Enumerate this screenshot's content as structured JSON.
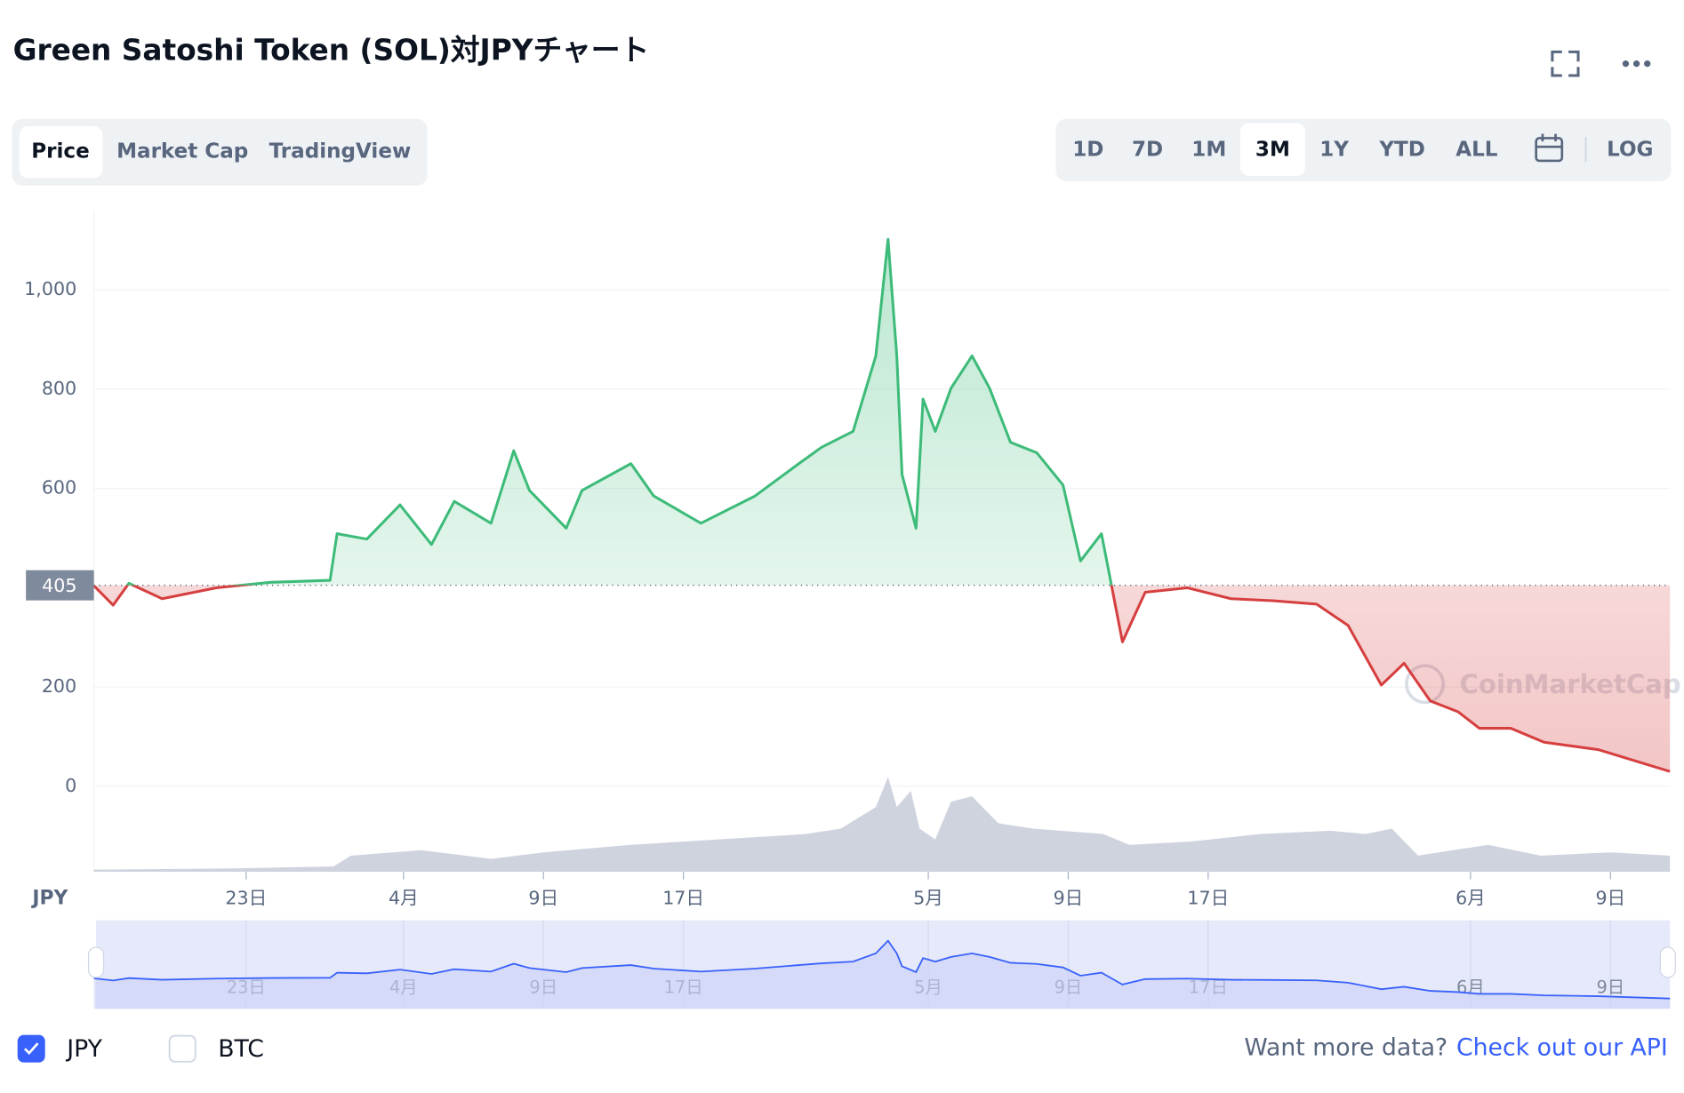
{
  "header": {
    "title": "Green Satoshi Token (SOL)対JPYチャート"
  },
  "tabs": [
    "Price",
    "Market Cap",
    "TradingView"
  ],
  "active_tab": 0,
  "ranges": [
    "1D",
    "7D",
    "1M",
    "3M",
    "1Y",
    "YTD",
    "ALL"
  ],
  "active_range": 3,
  "log_button": "LOG",
  "chart_data": {
    "type": "line",
    "currency_label": "JPY",
    "watermark": "CoinMarketCap",
    "reference_value": 405,
    "up_color": "#3dbb79",
    "down_color": "#d63f3f",
    "x": [
      -0.7,
      0.4,
      1.3,
      3.2,
      6.3,
      9.4,
      12.8,
      13.2,
      14.9,
      16.8,
      18.6,
      19.9,
      22,
      23.3,
      24.2,
      26.3,
      27.2,
      30,
      31.3,
      34,
      37.1,
      39.6,
      40.9,
      42.7,
      44,
      44.7,
      45.2,
      45.5,
      46.3,
      46.7,
      47.4,
      48.3,
      49.5,
      50.5,
      51.7,
      53.2,
      54.7,
      55.7,
      56.9,
      57.5,
      58.1,
      59.4,
      61.8,
      64.3,
      66.7,
      69.2,
      71,
      72.9,
      74.2,
      75.7,
      77.3,
      78.5,
      80.3,
      82.2,
      85.3,
      89.4
    ],
    "values": [
      404,
      365,
      409,
      378,
      400,
      411,
      415,
      509,
      498,
      567,
      487,
      574,
      530,
      676,
      596,
      520,
      596,
      650,
      585,
      530,
      585,
      650,
      683,
      715,
      867,
      1102,
      867,
      628,
      520,
      780,
      715,
      802,
      867,
      802,
      693,
      672,
      607,
      454,
      509,
      400,
      291,
      391,
      400,
      378,
      374,
      367,
      324,
      204,
      248,
      172,
      150,
      117,
      117,
      89,
      74,
      30
    ],
    "volume": {
      "x": [
        -0.7,
        7,
        13,
        14,
        18,
        22,
        25,
        30,
        35,
        40,
        42,
        44,
        44.7,
        45.2,
        46,
        46.5,
        47.4,
        48.3,
        49.5,
        51,
        53,
        57,
        58.5,
        62,
        66,
        70,
        72,
        73.5,
        75,
        77,
        79,
        82,
        86,
        89.4
      ],
      "values": [
        2,
        3,
        5,
        15,
        20,
        12,
        18,
        25,
        30,
        35,
        40,
        60,
        88,
        60,
        75,
        40,
        30,
        65,
        70,
        45,
        40,
        35,
        25,
        28,
        35,
        38,
        35,
        40,
        15,
        20,
        25,
        15,
        18,
        15
      ],
      "color": "#cfd3de"
    },
    "xlim": [
      -0.7,
      89.4
    ],
    "ylim": [
      -172,
      1160
    ],
    "yticks": [
      0,
      200,
      600,
      800,
      {
        "value": 1000,
        "label": "1,000"
      }
    ],
    "xticks": [
      {
        "value": 8,
        "label": "23日"
      },
      {
        "value": 17,
        "label": "4月"
      },
      {
        "value": 25,
        "label": "9日"
      },
      {
        "value": 33,
        "label": "17日"
      },
      {
        "value": 47,
        "label": "5月"
      },
      {
        "value": 55,
        "label": "9日"
      },
      {
        "value": 63,
        "label": "17日"
      },
      {
        "value": 78,
        "label": "6月"
      },
      {
        "value": 86,
        "label": "9日"
      }
    ],
    "grid": true
  },
  "legend": {
    "items": [
      {
        "label": "JPY",
        "checked": true
      },
      {
        "label": "BTC",
        "checked": false
      }
    ]
  },
  "footer": {
    "prompt": "Want more data?",
    "link": "Check out our API"
  }
}
